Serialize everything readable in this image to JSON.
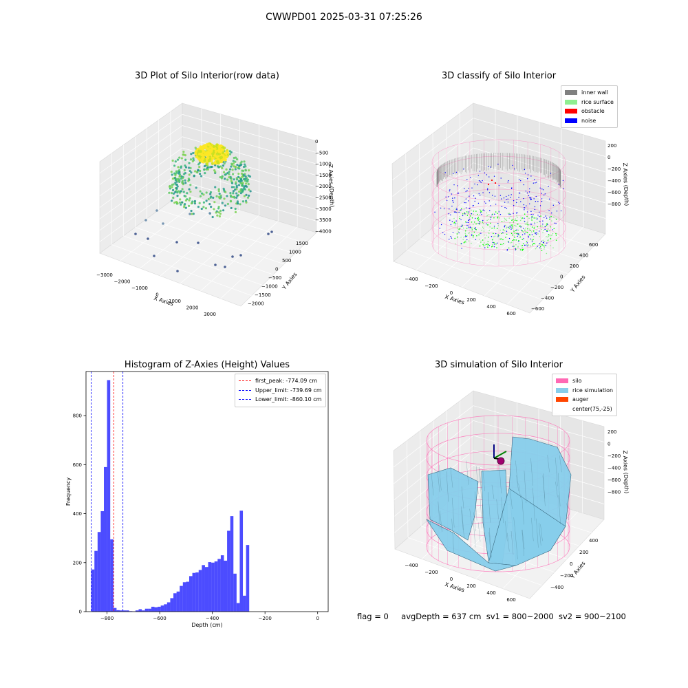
{
  "figure": {
    "suptitle": "CWWPD01 2025-03-31 07:25:26",
    "status": {
      "flag": "flag = 0",
      "avg_depth": "avgDepth = 637 cm",
      "sv1": "sv1 = 800~2000",
      "sv2": "sv2 = 900~2100"
    }
  },
  "panel_raw": {
    "title": "3D Plot of Silo Interior(row data)",
    "xlabel": "X Axies",
    "ylabel": "Y Axies",
    "zlabel": "Z Axies (Depth)",
    "x_ticks": [
      "−3000",
      "−2000",
      "−1000",
      "0",
      "1000",
      "2000",
      "3000"
    ],
    "y_ticks": [
      "1500",
      "1000",
      "500",
      "0",
      "−500",
      "−1000",
      "−1500",
      "−2000"
    ],
    "z_ticks": [
      "0",
      "−500",
      "−1000",
      "−1500",
      "−2000",
      "−2500",
      "−3000",
      "−3500",
      "−4000"
    ]
  },
  "panel_classify": {
    "title": "3D classify of Silo Interior",
    "xlabel": "X Axies",
    "ylabel": "Y Axies",
    "zlabel": "Z Axies (Depth)",
    "x_ticks": [
      "−400",
      "−200",
      "0",
      "200",
      "400",
      "600"
    ],
    "y_ticks": [
      "600",
      "400",
      "200",
      "0",
      "−200",
      "−400",
      "−600"
    ],
    "z_ticks": [
      "200",
      "0",
      "−200",
      "−400",
      "−600",
      "−800"
    ],
    "legend": [
      {
        "label": "inner wall",
        "color": "#808080"
      },
      {
        "label": "rice surface",
        "color": "#90ee90"
      },
      {
        "label": "obstacle",
        "color": "#ff0000"
      },
      {
        "label": "noise",
        "color": "#0000ff"
      }
    ]
  },
  "panel_sim": {
    "title": "3D simulation of Silo Interior",
    "xlabel": "X Axies",
    "ylabel": "Y Axies",
    "zlabel": "Z Axies (Depth)",
    "x_ticks": [
      "−400",
      "−200",
      "0",
      "200",
      "400",
      "600"
    ],
    "y_ticks": [
      "400",
      "200",
      "0",
      "−200",
      "−400"
    ],
    "z_ticks": [
      "200",
      "0",
      "−200",
      "−400",
      "−600",
      "−800"
    ],
    "legend": [
      {
        "label": "silo",
        "color": "#ff69b4"
      },
      {
        "label": "rice simulation",
        "color": "#87ceeb"
      },
      {
        "label": "auger",
        "color": "#ff4500"
      },
      {
        "label": "center(75,-25)",
        "color": "#ffffff"
      }
    ]
  },
  "chart_data": {
    "type": "bar",
    "title": "Histogram of Z-Axies (Height) Values",
    "xlabel": "Depth (cm)",
    "ylabel": "Frequency",
    "xlim": [
      -880,
      40
    ],
    "ylim": [
      0,
      980
    ],
    "x_ticks": [
      -800,
      -600,
      -400,
      -200,
      0
    ],
    "y_ticks": [
      0,
      200,
      400,
      600,
      800
    ],
    "bar_color": "#0000ff",
    "bins": [
      {
        "x0": -860,
        "x1": -848,
        "value": 172
      },
      {
        "x0": -848,
        "x1": -836,
        "value": 248
      },
      {
        "x0": -836,
        "x1": -824,
        "value": 325
      },
      {
        "x0": -824,
        "x1": -812,
        "value": 410
      },
      {
        "x0": -812,
        "x1": -800,
        "value": 590
      },
      {
        "x0": -800,
        "x1": -788,
        "value": 945
      },
      {
        "x0": -788,
        "x1": -776,
        "value": 295
      },
      {
        "x0": -776,
        "x1": -764,
        "value": 15
      },
      {
        "x0": -764,
        "x1": -752,
        "value": 6
      },
      {
        "x0": -752,
        "x1": -740,
        "value": 5
      },
      {
        "x0": -740,
        "x1": -728,
        "value": 5
      },
      {
        "x0": -728,
        "x1": -716,
        "value": 5
      },
      {
        "x0": -716,
        "x1": -704,
        "value": 2
      },
      {
        "x0": -704,
        "x1": -692,
        "value": 1
      },
      {
        "x0": -692,
        "x1": -680,
        "value": 5
      },
      {
        "x0": -680,
        "x1": -668,
        "value": 10
      },
      {
        "x0": -668,
        "x1": -656,
        "value": 5
      },
      {
        "x0": -656,
        "x1": -644,
        "value": 12
      },
      {
        "x0": -644,
        "x1": -632,
        "value": 12
      },
      {
        "x0": -632,
        "x1": -620,
        "value": 20
      },
      {
        "x0": -620,
        "x1": -608,
        "value": 18
      },
      {
        "x0": -608,
        "x1": -596,
        "value": 20
      },
      {
        "x0": -596,
        "x1": -584,
        "value": 25
      },
      {
        "x0": -584,
        "x1": -572,
        "value": 30
      },
      {
        "x0": -572,
        "x1": -560,
        "value": 38
      },
      {
        "x0": -560,
        "x1": -548,
        "value": 55
      },
      {
        "x0": -548,
        "x1": -536,
        "value": 75
      },
      {
        "x0": -536,
        "x1": -524,
        "value": 82
      },
      {
        "x0": -524,
        "x1": -512,
        "value": 105
      },
      {
        "x0": -512,
        "x1": -500,
        "value": 120
      },
      {
        "x0": -500,
        "x1": -488,
        "value": 122
      },
      {
        "x0": -488,
        "x1": -476,
        "value": 145
      },
      {
        "x0": -476,
        "x1": -464,
        "value": 158
      },
      {
        "x0": -464,
        "x1": -452,
        "value": 160
      },
      {
        "x0": -452,
        "x1": -440,
        "value": 170
      },
      {
        "x0": -440,
        "x1": -428,
        "value": 190
      },
      {
        "x0": -428,
        "x1": -416,
        "value": 182
      },
      {
        "x0": -416,
        "x1": -404,
        "value": 202
      },
      {
        "x0": -404,
        "x1": -392,
        "value": 200
      },
      {
        "x0": -392,
        "x1": -380,
        "value": 205
      },
      {
        "x0": -380,
        "x1": -368,
        "value": 215
      },
      {
        "x0": -368,
        "x1": -356,
        "value": 230
      },
      {
        "x0": -356,
        "x1": -344,
        "value": 208
      },
      {
        "x0": -344,
        "x1": -332,
        "value": 330
      },
      {
        "x0": -332,
        "x1": -320,
        "value": 390
      },
      {
        "x0": -320,
        "x1": -308,
        "value": 155
      },
      {
        "x0": -308,
        "x1": -296,
        "value": 35
      },
      {
        "x0": -296,
        "x1": -284,
        "value": 412
      },
      {
        "x0": -284,
        "x1": -272,
        "value": 65
      },
      {
        "x0": -272,
        "x1": -260,
        "value": 272
      }
    ],
    "vlines": [
      {
        "label": "first_peak: -774.09 cm",
        "x": -774.09,
        "color": "#ff0000"
      },
      {
        "label": "Upper_limit: -739.69 cm",
        "x": -739.69,
        "color": "#0000ff"
      },
      {
        "label": "Lower_limit: -860.10 cm",
        "x": -860.1,
        "color": "#0000ff"
      }
    ]
  }
}
